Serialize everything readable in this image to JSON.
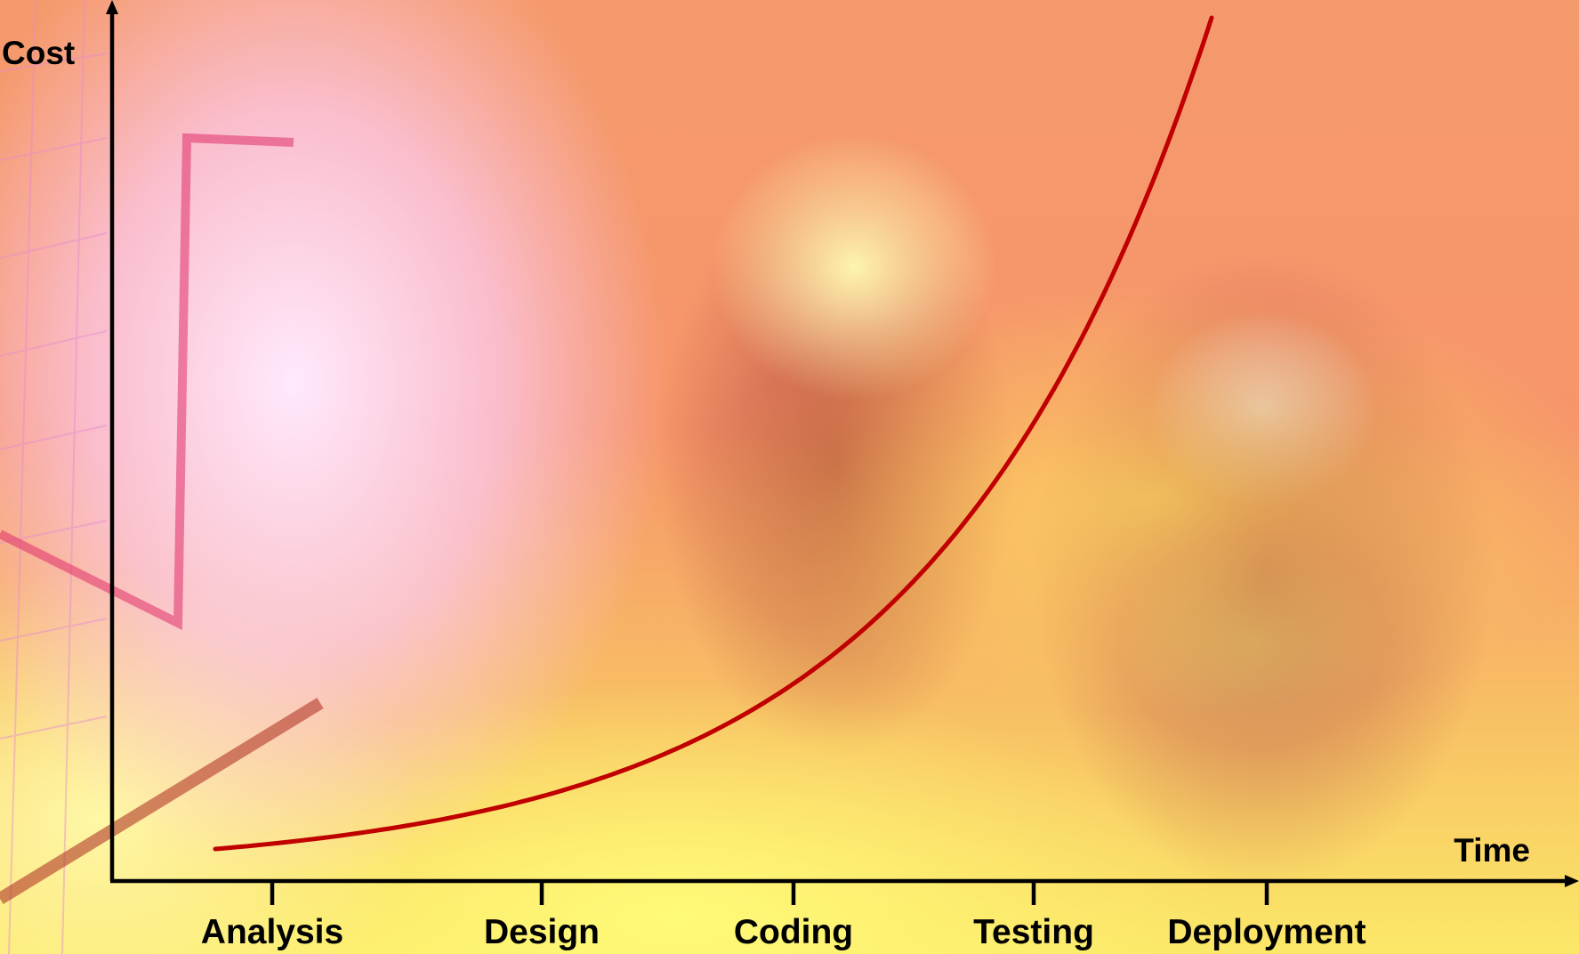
{
  "chart_data": {
    "type": "line",
    "title": "",
    "xlabel": "Time",
    "ylabel": "Cost",
    "categories": [
      "Analysis",
      "Design",
      "Coding",
      "Testing",
      "Deployment"
    ],
    "grid": false,
    "legend": "none",
    "series": [
      {
        "color": "#c00000"
      }
    ],
    "colors": {
      "axis": "#000000",
      "curve": "#c00000"
    }
  }
}
